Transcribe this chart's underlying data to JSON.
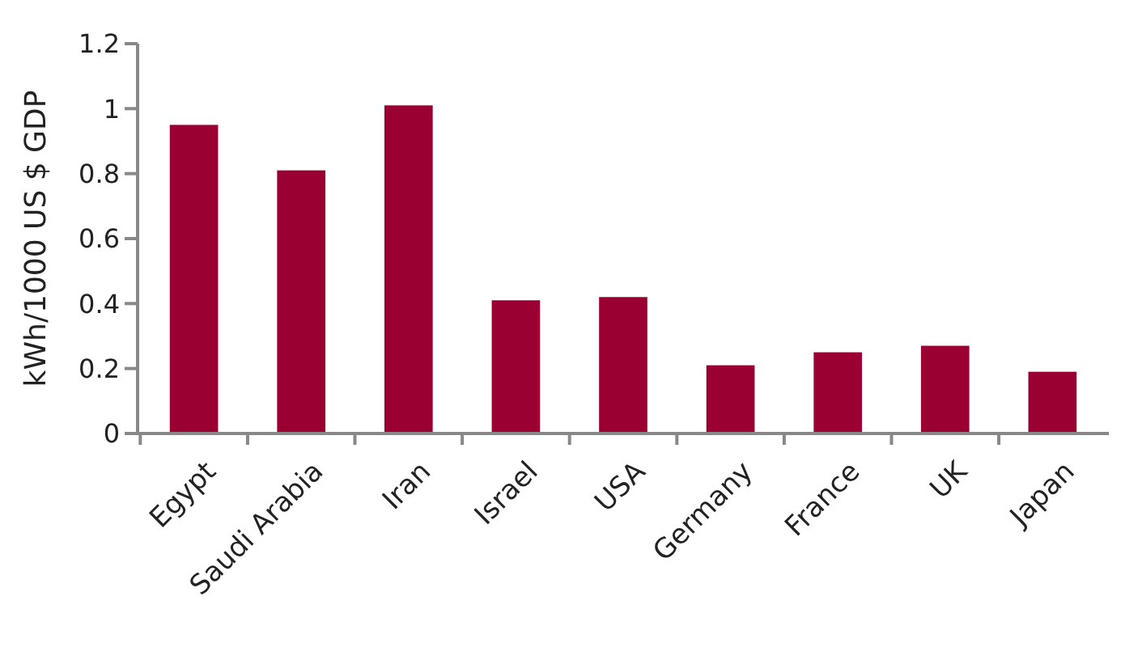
{
  "chart_data": {
    "type": "bar",
    "ylabel": "kWh/1000 US $ GDP",
    "categories": [
      "Egypt",
      "Saudi Arabia",
      "Iran",
      "Israel",
      "USA",
      "Germany",
      "France",
      "UK",
      "Japan"
    ],
    "values": [
      0.95,
      0.81,
      1.01,
      0.41,
      0.42,
      0.21,
      0.25,
      0.27,
      0.19
    ],
    "color": "#9b0032",
    "ylim": [
      0,
      1.2
    ],
    "yticks": [
      0,
      0.2,
      0.4,
      0.6,
      0.8,
      1,
      1.2
    ],
    "grid": false
  }
}
